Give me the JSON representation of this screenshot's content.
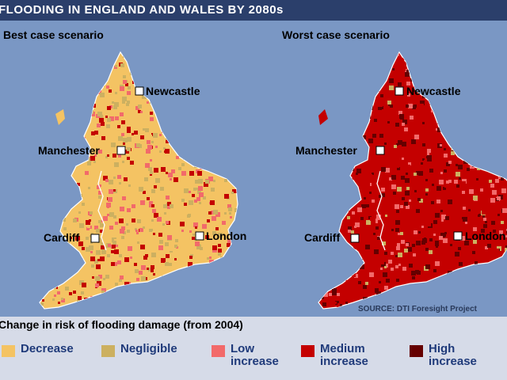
{
  "title": "FLOODING IN ENGLAND AND WALES BY 2080s",
  "panels": [
    {
      "label": "Best case scenario",
      "base_color": "#f4c363"
    },
    {
      "label": "Worst case scenario",
      "base_color": "#c40000"
    }
  ],
  "cities": [
    "Newcastle",
    "Manchester",
    "Cardiff",
    "London"
  ],
  "source": "SOURCE: DTI Foresight Project",
  "legend": {
    "title": "Change in risk of flooding damage (from 2004)",
    "items": [
      {
        "label": "Decrease",
        "color": "#f4c363"
      },
      {
        "label": "Negligible",
        "color": "#ccb060"
      },
      {
        "label": "Low increase",
        "color": "#f26a6a"
      },
      {
        "label": "Medium increase",
        "color": "#c40000"
      },
      {
        "label": "High increase",
        "color": "#650000"
      }
    ]
  },
  "colors": {
    "background": "#7a97c4",
    "title_bar": "#2b3f6b",
    "legend_bg": "#d6dbe8",
    "legend_text": "#1f3a7a"
  }
}
